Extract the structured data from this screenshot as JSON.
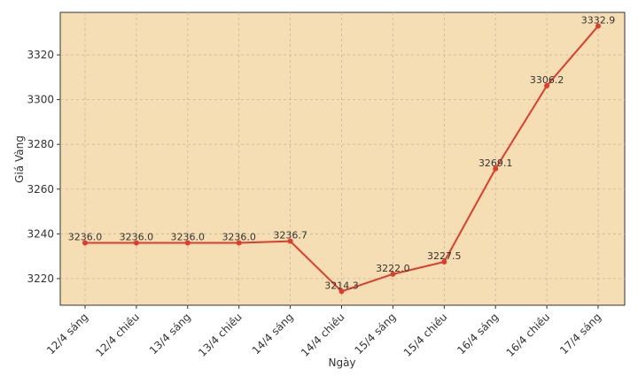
{
  "chart_data": {
    "type": "line",
    "x_label": "Ngày",
    "y_label": "Giá Vàng",
    "categories": [
      "12/4 sáng",
      "12/4 chiều",
      "13/4 sáng",
      "13/4 chiều",
      "14/4 sáng",
      "14/4 chiều",
      "15/4 sáng",
      "15/4 chiều",
      "16/4 sáng",
      "16/4 chiều",
      "17/4 sáng"
    ],
    "values": [
      3236.0,
      3236.0,
      3236.0,
      3236.0,
      3236.7,
      3214.3,
      3222.0,
      3227.5,
      3269.1,
      3306.2,
      3332.9
    ],
    "value_labels": [
      "3236.0",
      "3236.0",
      "3236.0",
      "3236.0",
      "3236.7",
      "3214.3",
      "3222.0",
      "3227.5",
      "3269.1",
      "3306.2",
      "3332.9"
    ],
    "color": "#dc3d2c",
    "ylim": [
      3208.1,
      3339.0
    ],
    "yticks": [
      3220,
      3240,
      3260,
      3280,
      3300,
      3320
    ],
    "grid": true
  }
}
